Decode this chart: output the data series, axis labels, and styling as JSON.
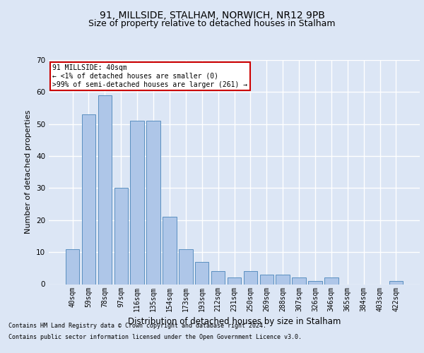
{
  "title_line1": "91, MILLSIDE, STALHAM, NORWICH, NR12 9PB",
  "title_line2": "Size of property relative to detached houses in Stalham",
  "xlabel": "Distribution of detached houses by size in Stalham",
  "ylabel": "Number of detached properties",
  "bar_color": "#aec6e8",
  "bar_edge_color": "#5a8fc0",
  "categories": [
    "40sqm",
    "59sqm",
    "78sqm",
    "97sqm",
    "116sqm",
    "135sqm",
    "154sqm",
    "173sqm",
    "193sqm",
    "212sqm",
    "231sqm",
    "250sqm",
    "269sqm",
    "288sqm",
    "307sqm",
    "326sqm",
    "346sqm",
    "365sqm",
    "384sqm",
    "403sqm",
    "422sqm"
  ],
  "values": [
    11,
    53,
    59,
    30,
    51,
    51,
    21,
    11,
    7,
    4,
    2,
    4,
    3,
    3,
    2,
    1,
    2,
    0,
    0,
    0,
    1
  ],
  "ylim": [
    0,
    70
  ],
  "yticks": [
    0,
    10,
    20,
    30,
    40,
    50,
    60,
    70
  ],
  "annotation_text": "91 MILLSIDE: 40sqm\n← <1% of detached houses are smaller (0)\n>99% of semi-detached houses are larger (261) →",
  "annotation_box_color": "#ffffff",
  "annotation_box_edge": "#cc0000",
  "footer_line1": "Contains HM Land Registry data © Crown copyright and database right 2024.",
  "footer_line2": "Contains public sector information licensed under the Open Government Licence v3.0.",
  "bg_color": "#dce6f5",
  "plot_bg_color": "#dce6f5",
  "grid_color": "#ffffff",
  "title_fontsize": 10,
  "subtitle_fontsize": 9,
  "tick_fontsize": 7,
  "ylabel_fontsize": 8,
  "xlabel_fontsize": 8.5,
  "footer_fontsize": 6
}
